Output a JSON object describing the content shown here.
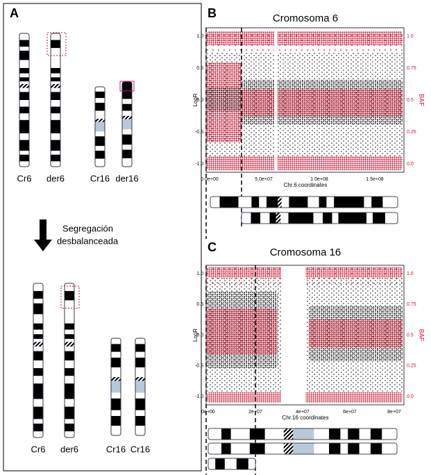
{
  "panel_a": {
    "label": "A",
    "top_labels": [
      "Cr6",
      "der6",
      "Cr16",
      "der16"
    ],
    "arrow_text": [
      "Segregación",
      "desbalanceada"
    ],
    "bottom_labels": [
      "Cr6",
      "der6",
      "Cr16",
      "Cr16"
    ]
  },
  "panel_b": {
    "label": "B",
    "title": "Cromosoma 6",
    "y_label": "LogR",
    "y2_label": "BAF",
    "y_ticks": [
      "1.0",
      "0.5",
      "0.0",
      "-0.5",
      "-1.0"
    ],
    "y2_ticks": [
      "1.0",
      "0.75",
      "0.5",
      "0.25",
      "0.0"
    ],
    "x_ticks": [
      "0.0e+00",
      "5.0e+07",
      "1.0e+08",
      "1.5e+08"
    ],
    "x_label": "Chr.6 coordinates"
  },
  "panel_c": {
    "label": "C",
    "title": "Cromosoma 16",
    "y_label": "LogR",
    "y2_label": "BAF",
    "y_ticks": [
      "1.0",
      "0.5",
      "0.0",
      "-0.5",
      "-1.0"
    ],
    "y2_ticks": [
      "1.0",
      "0.75",
      "0.5",
      "0.25",
      "0.0"
    ],
    "x_ticks": [
      "0e+00",
      "2e+07",
      "4e+07",
      "6e+07",
      "8e+07"
    ],
    "x_label": "Chr.16 coordinates"
  }
}
